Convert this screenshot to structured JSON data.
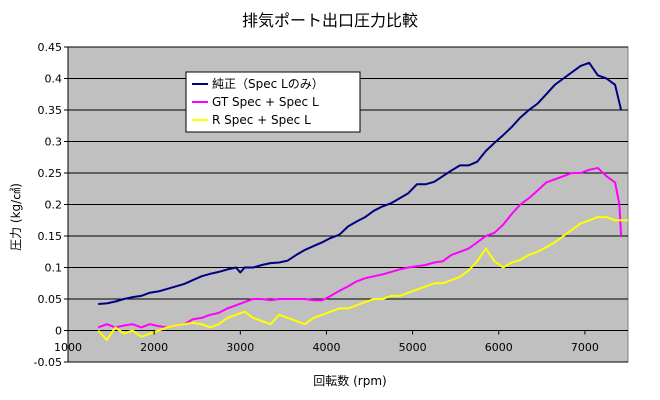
{
  "chart_data": {
    "type": "line",
    "title": "排気ポート出口圧力比較",
    "xlabel": "回転数 (rpm)",
    "ylabel": "圧力 (kg/㎠)",
    "xlim": [
      1000,
      7500
    ],
    "ylim": [
      -0.05,
      0.45
    ],
    "xticks": [
      1000,
      2000,
      3000,
      4000,
      5000,
      6000,
      7000
    ],
    "yticks": [
      -0.05,
      0,
      0.05,
      0.1,
      0.15,
      0.2,
      0.25,
      0.3,
      0.35,
      0.4,
      0.45
    ],
    "xtick_labels": [
      "1000",
      "2000",
      "3000",
      "4000",
      "5000",
      "6000",
      "7000"
    ],
    "ytick_labels": [
      "-0.05",
      "0",
      "0.05",
      "0.1",
      "0.15",
      "0.2",
      "0.25",
      "0.3",
      "0.35",
      "0.4",
      "0.45"
    ],
    "grid": "horizontal",
    "plot_background": "#c0c0c0",
    "legend_position": "top-left",
    "series": [
      {
        "name": "純正（Spec Lのみ）",
        "color": "#000080",
        "x": [
          1350,
          1450,
          1550,
          1650,
          1750,
          1850,
          1950,
          2050,
          2150,
          2250,
          2350,
          2450,
          2550,
          2650,
          2750,
          2850,
          2950,
          3000,
          3050,
          3150,
          3250,
          3350,
          3450,
          3550,
          3650,
          3750,
          3850,
          3950,
          4050,
          4150,
          4250,
          4350,
          4450,
          4550,
          4650,
          4750,
          4850,
          4950,
          5050,
          5150,
          5250,
          5350,
          5450,
          5550,
          5650,
          5750,
          5850,
          5950,
          6050,
          6150,
          6250,
          6350,
          6450,
          6550,
          6650,
          6750,
          6850,
          6950,
          7050,
          7150,
          7250,
          7350,
          7420
        ],
        "y": [
          0.042,
          0.043,
          0.046,
          0.05,
          0.053,
          0.055,
          0.06,
          0.062,
          0.066,
          0.07,
          0.074,
          0.08,
          0.086,
          0.09,
          0.093,
          0.097,
          0.1,
          0.092,
          0.1,
          0.1,
          0.104,
          0.107,
          0.108,
          0.111,
          0.12,
          0.128,
          0.134,
          0.14,
          0.147,
          0.152,
          0.165,
          0.173,
          0.18,
          0.19,
          0.197,
          0.202,
          0.21,
          0.218,
          0.232,
          0.232,
          0.236,
          0.245,
          0.254,
          0.262,
          0.262,
          0.268,
          0.285,
          0.298,
          0.31,
          0.323,
          0.338,
          0.35,
          0.36,
          0.375,
          0.39,
          0.4,
          0.41,
          0.42,
          0.425,
          0.405,
          0.4,
          0.39,
          0.35
        ]
      },
      {
        "name": "GT Spec + Spec L",
        "color": "#ff00ff",
        "x": [
          1350,
          1450,
          1550,
          1650,
          1750,
          1850,
          1950,
          2050,
          2150,
          2250,
          2350,
          2450,
          2550,
          2650,
          2750,
          2850,
          2950,
          3050,
          3150,
          3250,
          3350,
          3450,
          3550,
          3650,
          3750,
          3850,
          3950,
          4050,
          4150,
          4250,
          4350,
          4450,
          4550,
          4650,
          4750,
          4850,
          4950,
          5050,
          5150,
          5250,
          5350,
          5450,
          5550,
          5650,
          5750,
          5850,
          5950,
          6050,
          6150,
          6250,
          6350,
          6450,
          6550,
          6650,
          6750,
          6850,
          6950,
          7050,
          7150,
          7250,
          7350,
          7400,
          7420
        ],
        "y": [
          0.005,
          0.01,
          0.005,
          0.008,
          0.01,
          0.005,
          0.01,
          0.007,
          0.005,
          0.008,
          0.01,
          0.018,
          0.02,
          0.025,
          0.028,
          0.035,
          0.04,
          0.045,
          0.05,
          0.05,
          0.048,
          0.05,
          0.05,
          0.05,
          0.05,
          0.048,
          0.048,
          0.055,
          0.063,
          0.07,
          0.078,
          0.083,
          0.086,
          0.089,
          0.093,
          0.097,
          0.1,
          0.102,
          0.104,
          0.108,
          0.11,
          0.12,
          0.125,
          0.13,
          0.14,
          0.15,
          0.155,
          0.168,
          0.185,
          0.2,
          0.21,
          0.222,
          0.235,
          0.24,
          0.245,
          0.25,
          0.25,
          0.255,
          0.258,
          0.245,
          0.235,
          0.2,
          0.15
        ]
      },
      {
        "name": "R Spec + Spec L",
        "color": "#ffff00",
        "x": [
          1350,
          1450,
          1550,
          1650,
          1750,
          1850,
          1950,
          2050,
          2150,
          2250,
          2350,
          2450,
          2550,
          2650,
          2750,
          2850,
          2950,
          3050,
          3150,
          3250,
          3350,
          3450,
          3550,
          3650,
          3750,
          3850,
          3950,
          4050,
          4150,
          4250,
          4350,
          4450,
          4550,
          4650,
          4750,
          4850,
          4950,
          5050,
          5150,
          5250,
          5350,
          5450,
          5550,
          5650,
          5750,
          5850,
          5950,
          6050,
          6150,
          6250,
          6350,
          6450,
          6550,
          6650,
          6750,
          6850,
          6950,
          7050,
          7150,
          7250,
          7350,
          7450,
          7500
        ],
        "y": [
          0.0,
          -0.015,
          0.005,
          -0.005,
          0.0,
          -0.01,
          -0.005,
          0.0,
          0.005,
          0.008,
          0.01,
          0.012,
          0.01,
          0.005,
          0.01,
          0.02,
          0.025,
          0.03,
          0.02,
          0.015,
          0.01,
          0.025,
          0.02,
          0.015,
          0.01,
          0.02,
          0.025,
          0.03,
          0.035,
          0.035,
          0.04,
          0.045,
          0.05,
          0.05,
          0.055,
          0.055,
          0.06,
          0.065,
          0.07,
          0.075,
          0.075,
          0.08,
          0.085,
          0.095,
          0.11,
          0.13,
          0.11,
          0.1,
          0.108,
          0.112,
          0.12,
          0.125,
          0.132,
          0.14,
          0.15,
          0.16,
          0.17,
          0.175,
          0.18,
          0.18,
          0.175,
          0.175,
          0.175
        ]
      }
    ]
  }
}
